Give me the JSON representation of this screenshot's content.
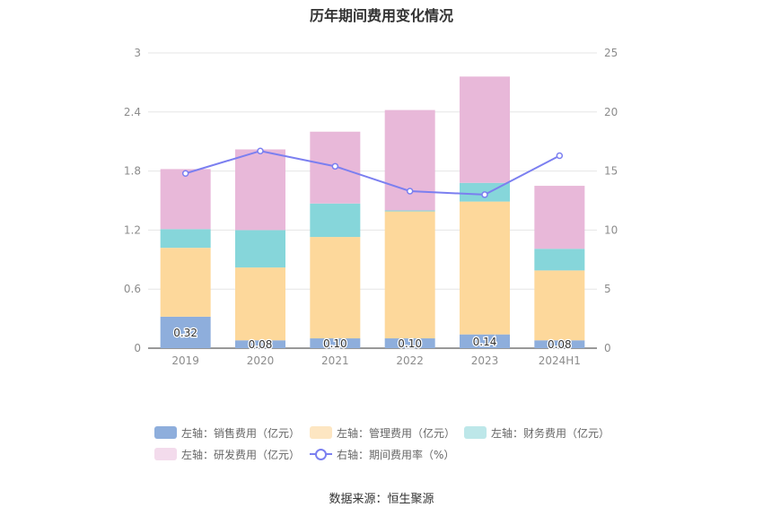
{
  "chart_data": {
    "type": "bar",
    "title": "历年期间费用变化情况",
    "categories": [
      "2019",
      "2020",
      "2021",
      "2022",
      "2023",
      "2024H1"
    ],
    "y_left": {
      "ticks": [
        "0",
        "0.6",
        "1.2",
        "1.8",
        "2.4",
        "3"
      ],
      "ylim": [
        0,
        3
      ]
    },
    "y_right": {
      "ticks": [
        "0",
        "5",
        "10",
        "15",
        "20",
        "25"
      ],
      "ylim": [
        0,
        25
      ]
    },
    "grid": true,
    "legend_position": "bottom",
    "series": [
      {
        "name": "左轴：销售费用（亿元）",
        "type": "bar",
        "axis": "left",
        "color": "#8eaedc",
        "values": [
          0.32,
          0.08,
          0.1,
          0.1,
          0.14,
          0.08
        ],
        "labels": [
          "0.32",
          "0.08",
          "0.10",
          "0.10",
          "0.14",
          "0.08"
        ]
      },
      {
        "name": "左轴：管理费用（亿元）",
        "type": "bar",
        "axis": "left",
        "color": "#fdd89b",
        "values": [
          0.7,
          0.74,
          1.03,
          1.29,
          1.35,
          0.71
        ]
      },
      {
        "name": "左轴：财务费用（亿元）",
        "type": "bar",
        "axis": "left",
        "color": "#86d6da",
        "values": [
          0.19,
          0.38,
          0.34,
          0.01,
          0.19,
          0.22
        ]
      },
      {
        "name": "左轴：研发费用（亿元）",
        "type": "bar",
        "axis": "left",
        "color": "#e8b8d9",
        "values": [
          0.61,
          0.82,
          0.73,
          1.02,
          1.08,
          0.64
        ]
      },
      {
        "name": "右轴：期间费用率（%）",
        "type": "line",
        "axis": "right",
        "color": "#7b7ff0",
        "values": [
          14.8,
          16.7,
          15.4,
          13.3,
          13.0,
          16.3
        ]
      }
    ],
    "legend_colors": [
      "#8eaedc",
      "#fde6c2",
      "#bde7e9",
      "#f3dbec",
      "#7b7ff0"
    ]
  },
  "source_note": "数据来源：恒生聚源"
}
